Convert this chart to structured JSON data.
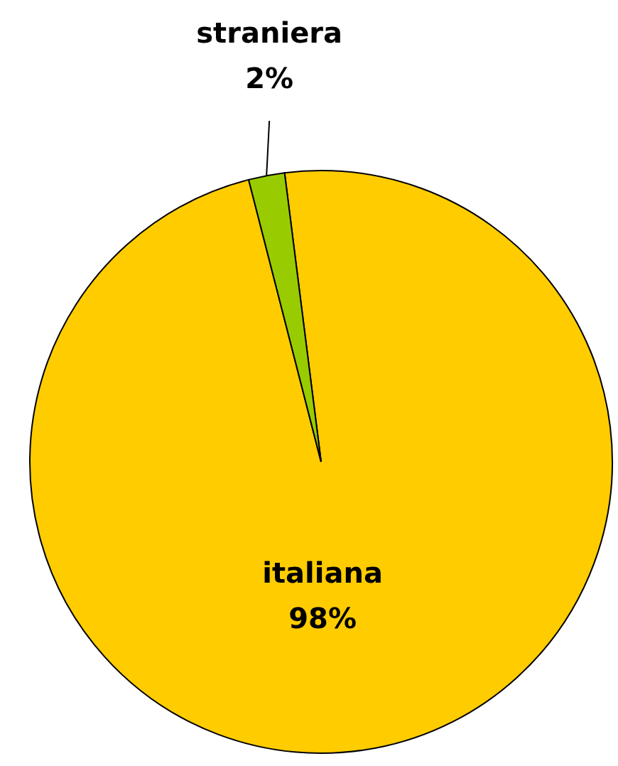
{
  "chart_data": {
    "type": "pie",
    "categories": [
      "italiana",
      "straniera"
    ],
    "values": [
      98,
      2
    ],
    "colors": [
      "#ffcc00",
      "#99cc00"
    ],
    "value_labels": [
      "98%",
      "2%"
    ]
  }
}
